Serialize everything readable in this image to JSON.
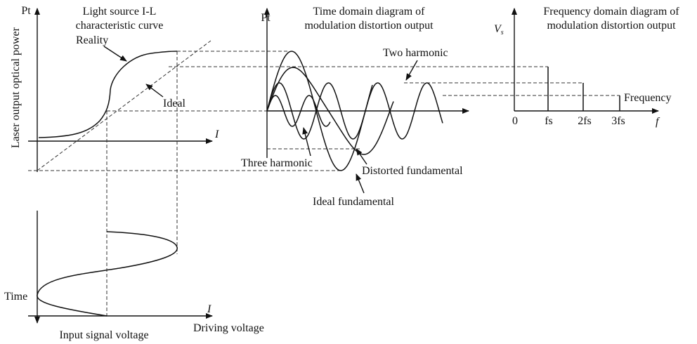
{
  "left_panel": {
    "y_axis_label": "Pt",
    "title_line1": "Light source I-L",
    "title_line2": "characteristic curve",
    "side_label": "Laser output optical power",
    "reality_label": "Reality",
    "ideal_label": "Ideal",
    "x_axis_label": "I"
  },
  "middle_panel": {
    "title_line1": "Time domain diagram of",
    "title_line2": "modulation distortion output",
    "y_axis_label": "Pt",
    "two_harmonic": "Two harmonic",
    "three_harmonic": "Three harmonic",
    "distorted_fundamental": "Distorted fundamental",
    "ideal_fundamental": "Ideal fundamental"
  },
  "right_panel": {
    "title_line1": "Frequency domain diagram of",
    "title_line2": "modulation distortion output",
    "y_axis_symbol": "V",
    "y_axis_subscript": "s",
    "frequency_label": "Frequency",
    "ticks": [
      "0",
      "fs",
      "2fs",
      "3fs"
    ],
    "x_axis_label": "f"
  },
  "bottom_panel": {
    "y_axis_label": "Time",
    "x_axis_label": "I",
    "input_label": "Input signal voltage",
    "driving_label": "Driving voltage"
  }
}
